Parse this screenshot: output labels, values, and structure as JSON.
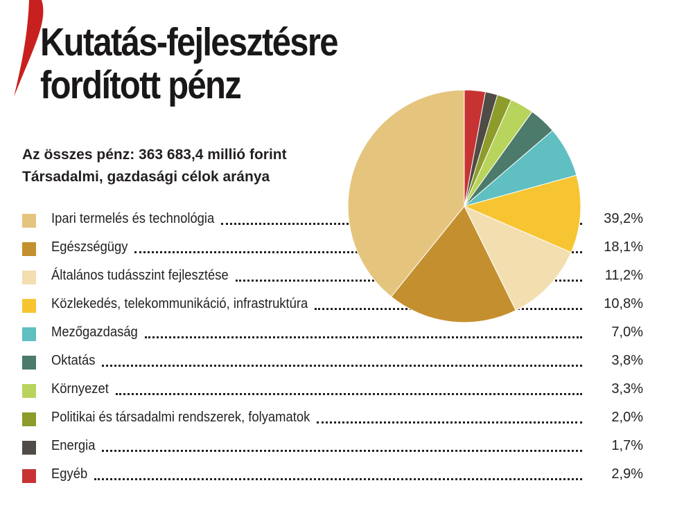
{
  "header": {
    "title_line1": "Kutatás-fejlesztésre",
    "title_line2": "fordított pénz",
    "subtitle_line1": "Az összes pénz: 363 683,4 millió forint",
    "subtitle_line2": "Társadalmi, gazdasági célok aránya"
  },
  "colors": {
    "accent_red": "#c8201f"
  },
  "chart_data": {
    "type": "pie",
    "title": "Kutatás-fejlesztésre fordított pénz",
    "subtitle": "Társadalmi, gazdasági célok aránya",
    "total": "363 683,4 millió forint",
    "unit": "%",
    "slices": [
      {
        "label": "Ipari termelés és technológia",
        "value": 39.2,
        "display": "39,2%",
        "color": "#e5c57e"
      },
      {
        "label": "Egészségügy",
        "value": 18.1,
        "display": "18,1%",
        "color": "#c4902f"
      },
      {
        "label": "Általános tudásszint fejlesztése",
        "value": 11.2,
        "display": "11,2%",
        "color": "#f3deb0"
      },
      {
        "label": "Közlekedés, telekommunikáció, infrastruktúra",
        "value": 10.8,
        "display": "10,8%",
        "color": "#f6c531"
      },
      {
        "label": "Mezőgazdaság",
        "value": 7.0,
        "display": "7,0%",
        "color": "#5fbfc1"
      },
      {
        "label": "Oktatás",
        "value": 3.8,
        "display": "3,8%",
        "color": "#4c7a6b"
      },
      {
        "label": "Környezet",
        "value": 3.3,
        "display": "3,3%",
        "color": "#b8d45d"
      },
      {
        "label": "Politikai és társadalmi rendszerek, folyamatok",
        "value": 2.0,
        "display": "2,0%",
        "color": "#8e9c2c"
      },
      {
        "label": "Energia",
        "value": 1.7,
        "display": "1,7%",
        "color": "#4f4c47"
      },
      {
        "label": "Egyéb",
        "value": 2.9,
        "display": "2,9%",
        "color": "#c73333"
      }
    ],
    "legend_placement": "left"
  }
}
